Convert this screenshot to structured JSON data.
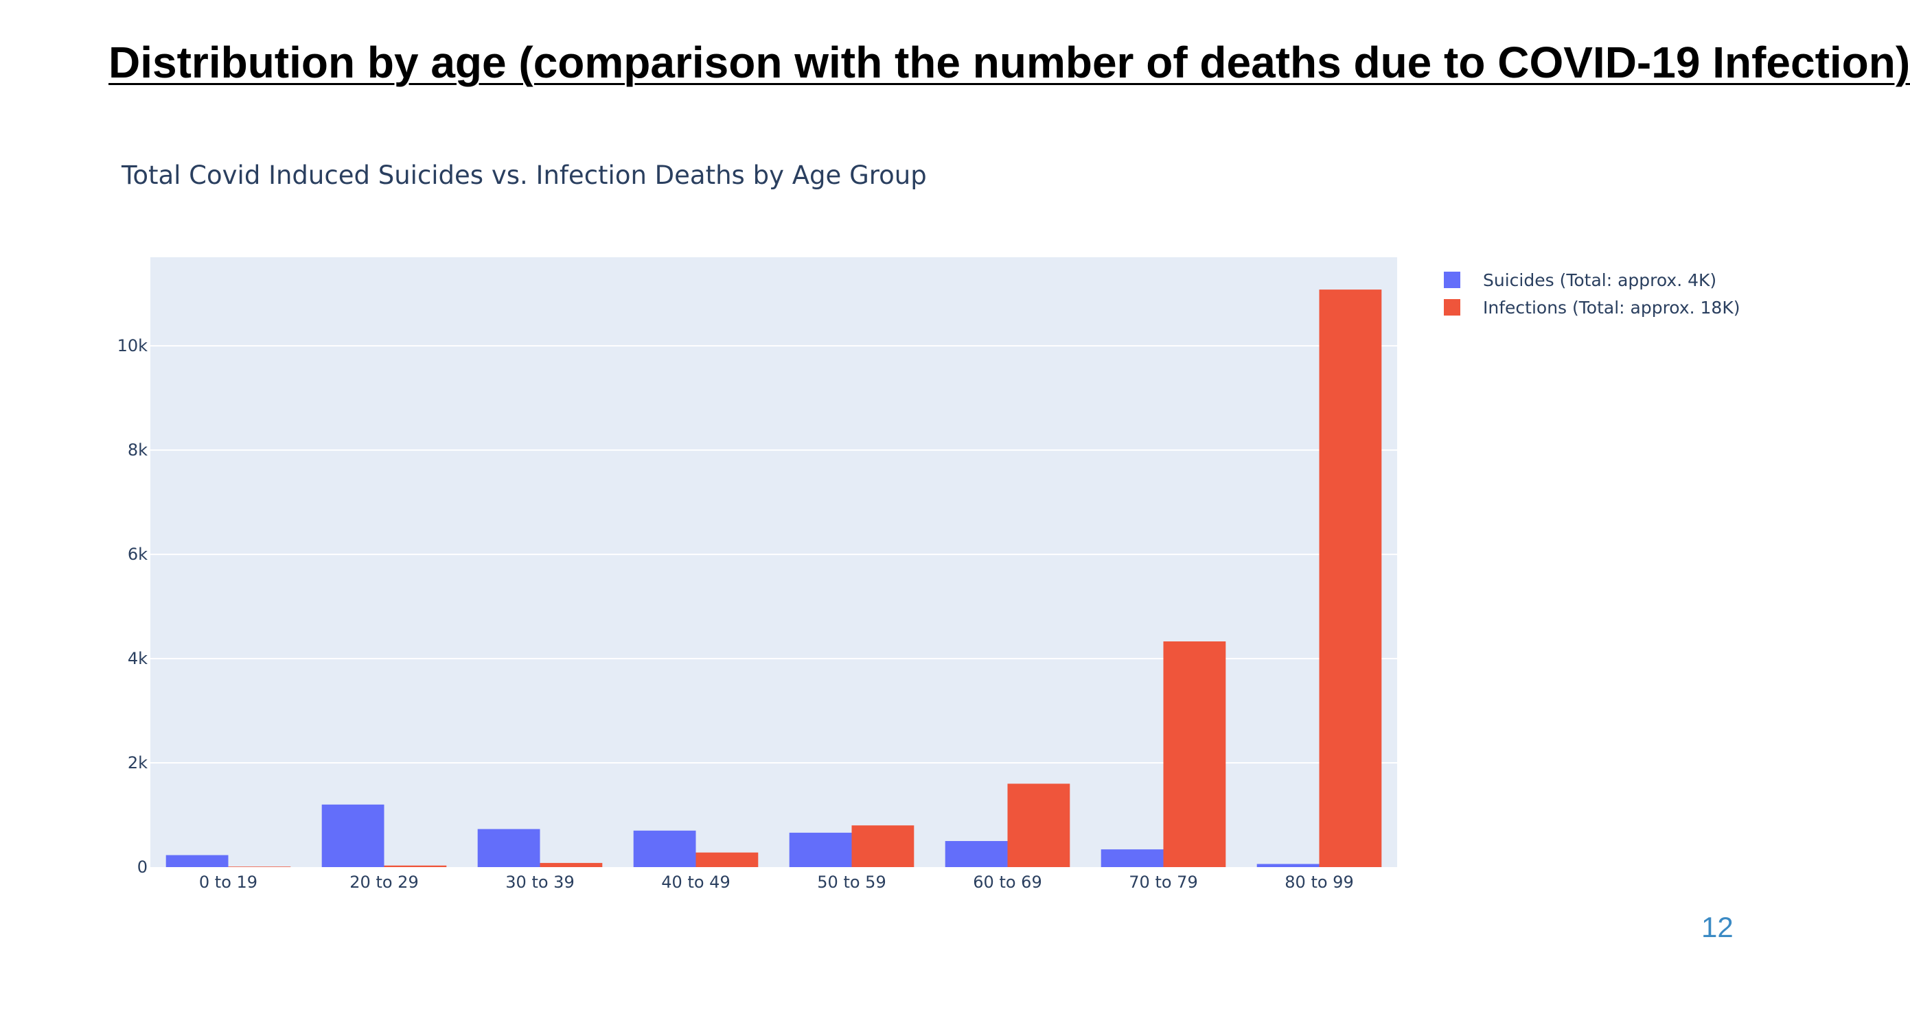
{
  "slide": {
    "title": "Distribution by age (comparison with the number of deaths due to COVID-19 Infection)",
    "page_number": "12"
  },
  "chart_data": {
    "type": "bar",
    "title": "Total Covid Induced Suicides vs. Infection Deaths by Age Group",
    "xlabel": "",
    "ylabel": "",
    "categories": [
      "0 to 19",
      "20 to 29",
      "30 to 39",
      "40 to 49",
      "50 to 59",
      "60 to 69",
      "70 to 79",
      "80 to 99"
    ],
    "series": [
      {
        "name": "Suicides (Total: approx. 4K)",
        "color": "#636efa",
        "values": [
          230,
          1200,
          730,
          700,
          660,
          500,
          340,
          60
        ]
      },
      {
        "name": "Infections (Total: approx. 18K)",
        "color": "#ef553b",
        "values": [
          10,
          30,
          80,
          280,
          800,
          1600,
          4330,
          11080
        ]
      }
    ],
    "ylim": [
      0,
      11700
    ],
    "yticks": [
      0,
      2000,
      4000,
      6000,
      8000,
      10000
    ],
    "ytick_labels": [
      "0",
      "2k",
      "4k",
      "6k",
      "8k",
      "10k"
    ],
    "grid": true,
    "legend_position": "top-right",
    "plot_background": "#e5ecf6"
  }
}
